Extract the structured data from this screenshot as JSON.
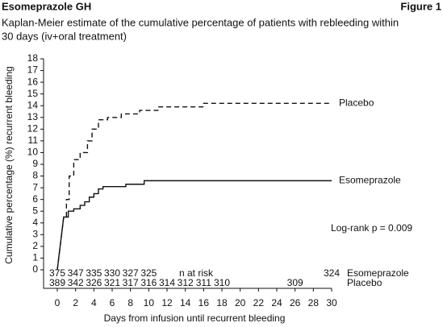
{
  "chart_data": {
    "type": "step",
    "header": "Esomeprazole GH",
    "figure_label": "Figure 1",
    "title": "Kaplan-Meier estimate of the cumulative percentage of patients with rebleeding within",
    "title_line2": "30 days (iv+oral treatment)",
    "ylabel": "Cumulative percentage (%) recurrent bleeding",
    "xlabel": "Days from infusion until recurrent bleeding",
    "annotation": "Log-rank p = 0.009",
    "at_risk_label": "n at risk",
    "xlim": [
      0,
      30
    ],
    "ylim": [
      0,
      18
    ],
    "xticks": [
      0,
      2,
      4,
      6,
      8,
      10,
      12,
      14,
      16,
      18,
      20,
      22,
      24,
      26,
      28,
      30
    ],
    "yticks": [
      0,
      1,
      2,
      3,
      4,
      5,
      6,
      7,
      8,
      9,
      10,
      11,
      12,
      13,
      14,
      15,
      16,
      17,
      18
    ],
    "series": [
      {
        "name": "Placebo",
        "color": "#111111",
        "dashed": true,
        "x": [
          0,
          0.7,
          1.0,
          1.3,
          1.8,
          2.5,
          3.3,
          3.8,
          4.5,
          5.5,
          7,
          9,
          11,
          16,
          30
        ],
        "y": [
          0,
          4.5,
          6,
          8,
          9.4,
          10,
          11,
          12,
          12.8,
          13,
          13.3,
          13.6,
          13.9,
          14.2,
          14.2
        ],
        "at_risk_days": [
          0,
          2,
          4,
          6,
          8,
          10,
          12,
          14,
          16,
          18,
          26
        ],
        "at_risk": [
          389,
          342,
          326,
          321,
          317,
          316,
          314,
          312,
          311,
          310,
          309
        ]
      },
      {
        "name": "Esomeprazole",
        "color": "#111111",
        "dashed": false,
        "x": [
          0,
          0.7,
          1.2,
          1.8,
          2.5,
          3.0,
          3.5,
          4.0,
          4.5,
          5,
          7.5,
          9.5,
          30
        ],
        "y": [
          0,
          4.5,
          5,
          5.2,
          5.5,
          5.8,
          6.2,
          6.5,
          6.9,
          7.1,
          7.3,
          7.6,
          7.6
        ],
        "at_risk_days": [
          0,
          2,
          4,
          6,
          8,
          10,
          30
        ],
        "at_risk": [
          375,
          347,
          335,
          330,
          327,
          325,
          324
        ]
      }
    ]
  }
}
